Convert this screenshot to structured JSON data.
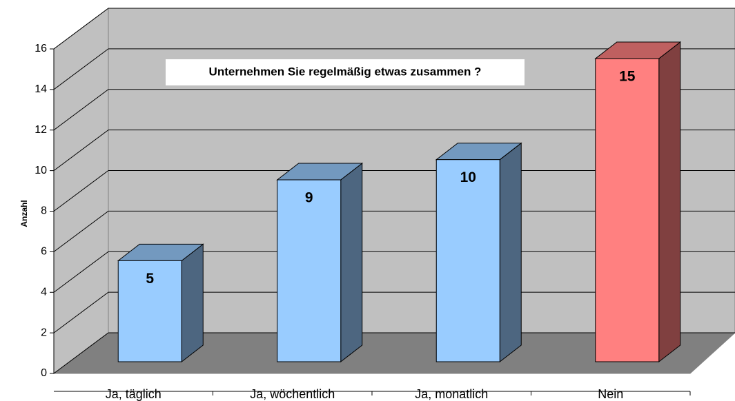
{
  "chart_data": {
    "type": "bar3d",
    "title": "Unternehmen Sie regelmäßig etwas zusammen ?",
    "y_label": "Anzahl",
    "categories": [
      "Ja, täglich",
      "Ja, wöchentlich",
      "Ja, monatlich",
      "Nein"
    ],
    "values": [
      5,
      9,
      10,
      15
    ],
    "colors": [
      "#99ccff",
      "#99ccff",
      "#99ccff",
      "#ff8080"
    ],
    "ylim": [
      0,
      16
    ],
    "yticks": [
      0,
      2,
      4,
      6,
      8,
      10,
      12,
      14,
      16
    ],
    "grid": true
  }
}
